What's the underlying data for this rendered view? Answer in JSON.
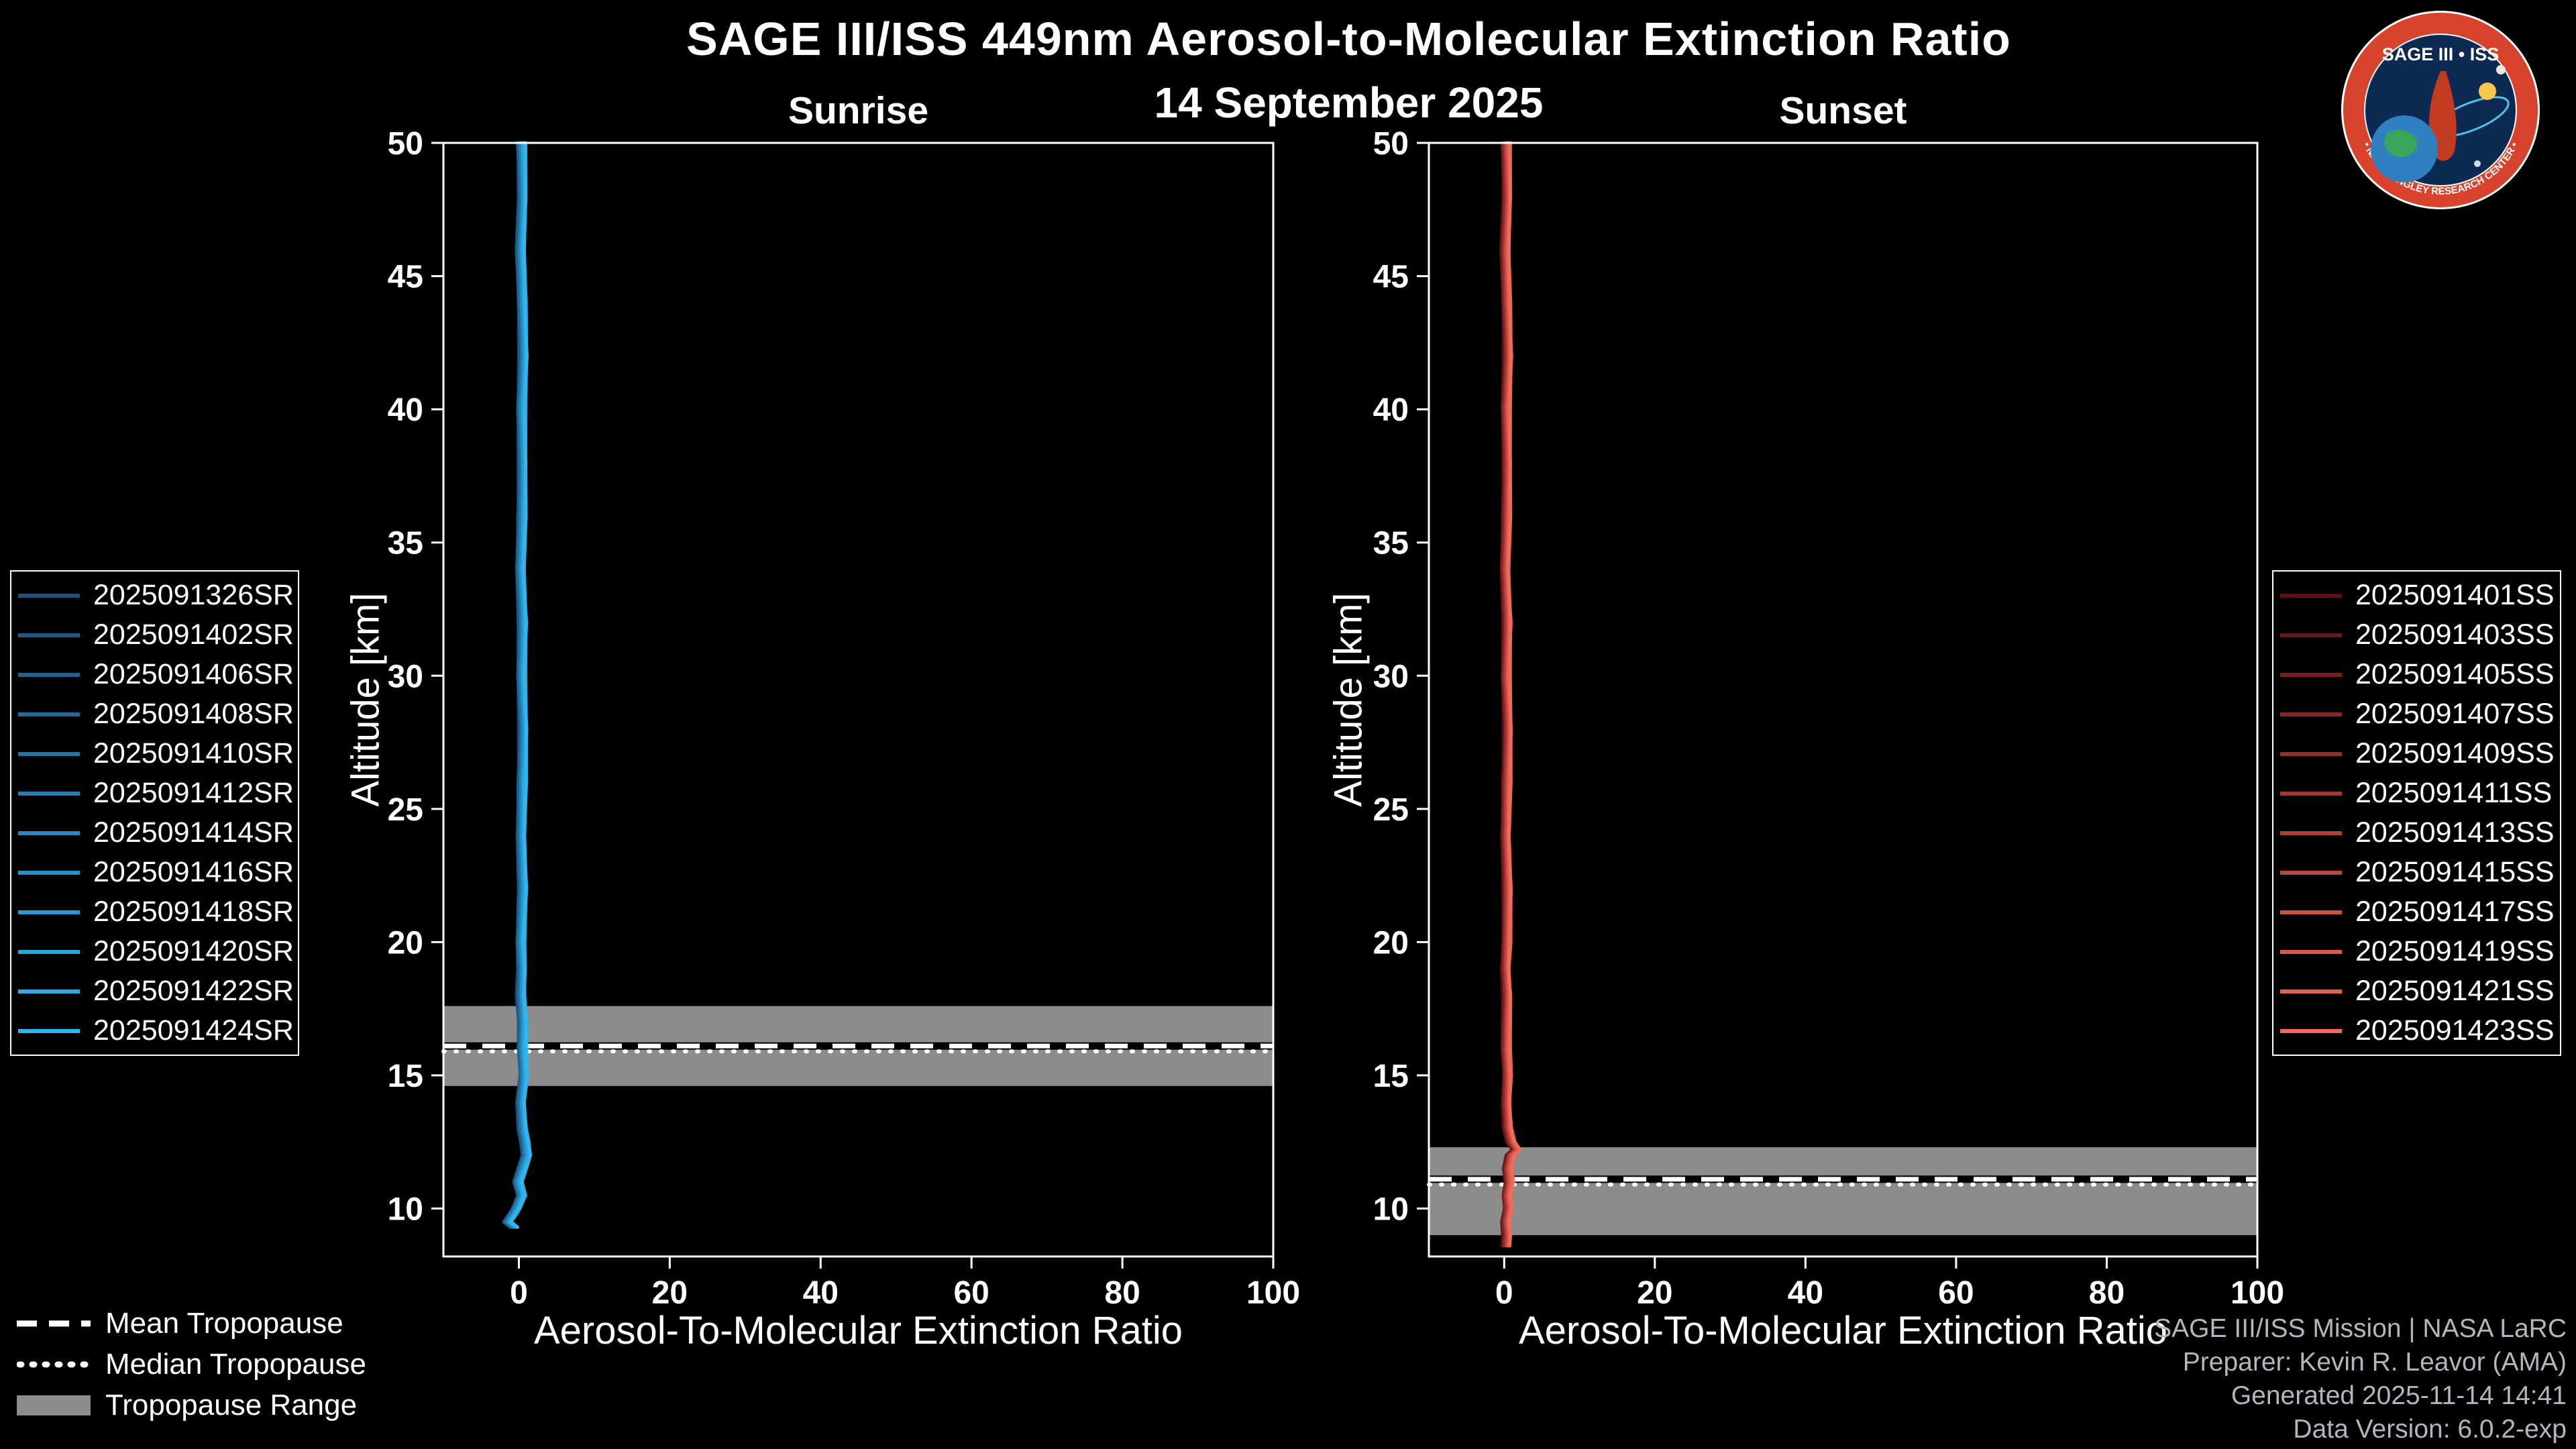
{
  "header": {
    "title": "SAGE III/ISS 449nm Aerosol-to-Molecular Extinction Ratio",
    "date": "14 September 2025"
  },
  "logo": {
    "text": "SAGE III • ISS",
    "ring_text": "• NASA LANGLEY RESEARCH CENTER •"
  },
  "credits": {
    "line1": "SAGE III/ISS Mission | NASA LaRC",
    "line2": "Preparer: Kevin R. Leavor (AMA)",
    "line3": "Generated 2025-11-14 14:41",
    "line4": "Data Version: 6.0.2-exp"
  },
  "tropopause_legend": {
    "mean": "Mean Tropopause",
    "median": "Median Tropopause",
    "range": "Tropopause Range"
  },
  "chart_data": {
    "type": "line",
    "title": "SAGE III/ISS 449nm Aerosol-to-Molecular Extinction Ratio",
    "subtitle": "14 September 2025",
    "xlabel": "Aerosol-To-Molecular Extinction Ratio",
    "ylabel": "Altitude [km]",
    "xlim": [
      -10,
      100
    ],
    "ylim": [
      8.2,
      50
    ],
    "xticks": [
      0,
      20,
      40,
      60,
      80,
      100
    ],
    "yticks": [
      10,
      15,
      20,
      25,
      30,
      35,
      40,
      45,
      50
    ],
    "grid": false,
    "legend_position": "outside",
    "panels": [
      {
        "title": "Sunrise",
        "series_labels": [
          "2025091326SR",
          "2025091402SR",
          "2025091406SR",
          "2025091408SR",
          "2025091410SR",
          "2025091412SR",
          "2025091414SR",
          "2025091416SR",
          "2025091418SR",
          "2025091420SR",
          "2025091422SR",
          "2025091424SR"
        ],
        "color_start": "#1d4f7c",
        "color_end": "#2eb7f0",
        "legend_side": "left",
        "tropopause": {
          "mean_km": 16.1,
          "median_km": 15.9,
          "range_km": [
            14.6,
            17.6
          ]
        },
        "profile": {
          "altitude_km": [
            50,
            48,
            46,
            44,
            42,
            40,
            38,
            36,
            34,
            32,
            30,
            28,
            26,
            24,
            22,
            20,
            19,
            18,
            17,
            16,
            15,
            14,
            13,
            12.5,
            12,
            11.5,
            11,
            10.5,
            10,
            9.8,
            9.5,
            9.3
          ],
          "ratio": [
            0.3,
            0.5,
            0.2,
            0.4,
            0.6,
            0.3,
            0.5,
            0.4,
            0.2,
            0.5,
            0.3,
            0.6,
            0.4,
            0.3,
            0.5,
            0.2,
            0.4,
            0.3,
            0.5,
            0.4,
            0.6,
            0.3,
            0.5,
            0.8,
            1.0,
            0.4,
            -0.2,
            0.3,
            -0.4,
            -0.8,
            -1.5,
            -0.6
          ]
        }
      },
      {
        "title": "Sunset",
        "series_labels": [
          "2025091401SS",
          "2025091403SS",
          "2025091405SS",
          "2025091407SS",
          "2025091409SS",
          "2025091411SS",
          "2025091413SS",
          "2025091415SS",
          "2025091417SS",
          "2025091419SS",
          "2025091421SS",
          "2025091423SS"
        ],
        "color_start": "#5e0f12",
        "color_end": "#f4695a",
        "legend_side": "right",
        "tropopause": {
          "mean_km": 11.1,
          "median_km": 10.9,
          "range_km": [
            9.0,
            12.3
          ]
        },
        "profile": {
          "altitude_km": [
            50,
            48,
            46,
            44,
            42,
            40,
            38,
            36,
            34,
            32,
            30,
            28,
            26,
            24,
            22,
            20,
            19,
            18,
            17,
            16,
            15,
            14,
            13,
            12.5,
            12.2,
            12,
            11.5,
            11,
            10.5,
            10,
            9.5,
            9,
            8.6
          ],
          "ratio": [
            0.2,
            0.4,
            0.1,
            0.3,
            0.5,
            0.2,
            0.4,
            0.3,
            0.1,
            0.4,
            0.2,
            0.5,
            0.3,
            0.2,
            0.4,
            0.3,
            0.2,
            0.4,
            0.3,
            0.2,
            0.4,
            0.3,
            0.5,
            0.9,
            1.6,
            0.8,
            0.4,
            0.6,
            0.3,
            0.5,
            0.2,
            0.4,
            0.3
          ]
        }
      }
    ]
  }
}
